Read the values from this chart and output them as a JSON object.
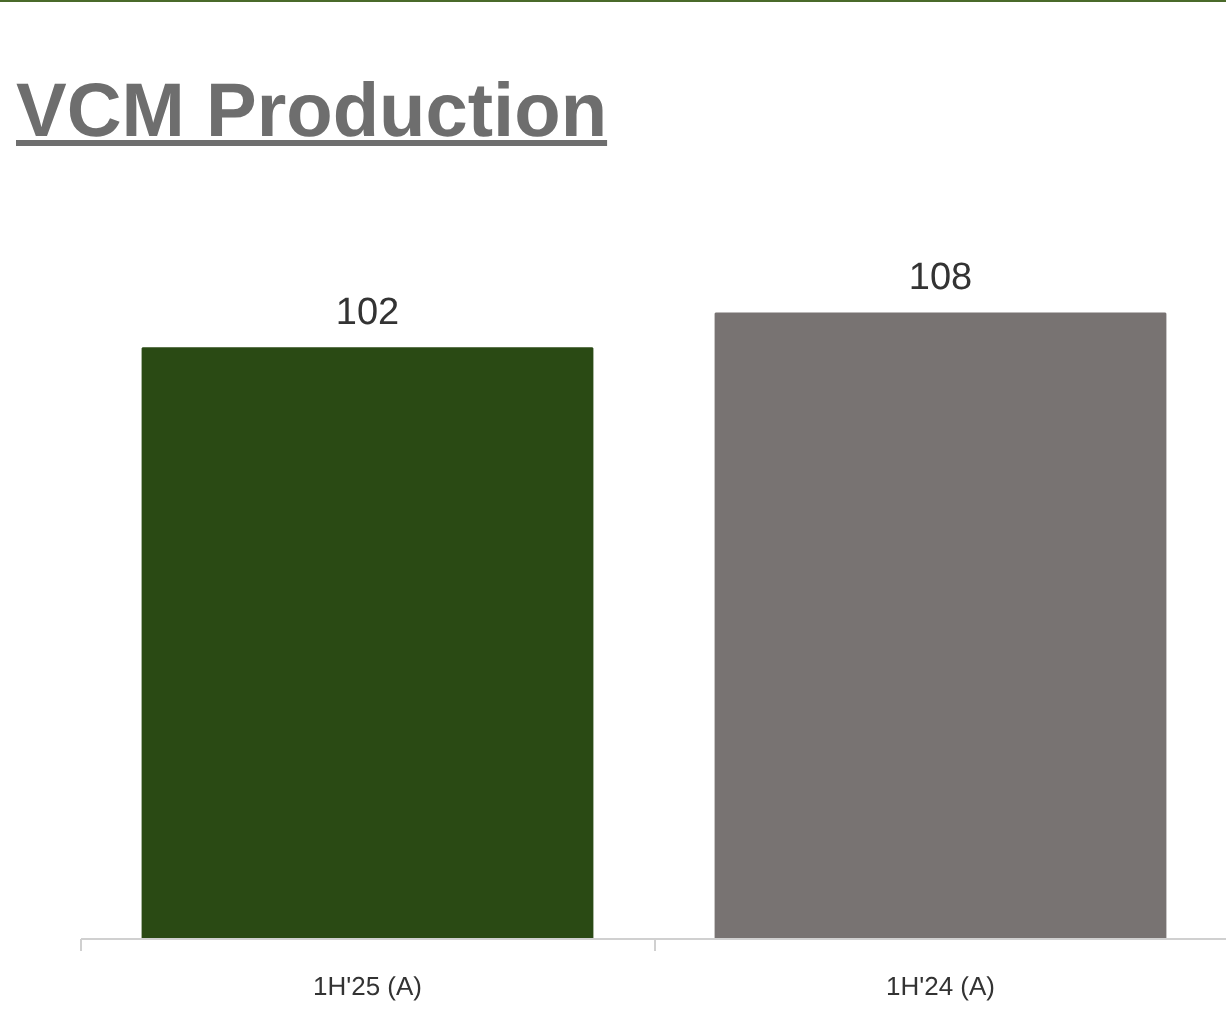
{
  "chart_data": {
    "type": "bar",
    "title": "VCM Production",
    "categories": [
      "1H'25 (A)",
      "1H'24 (A)"
    ],
    "values": [
      102,
      108
    ],
    "colors": [
      "#2a4a14",
      "#787372"
    ],
    "data_labels": true
  }
}
